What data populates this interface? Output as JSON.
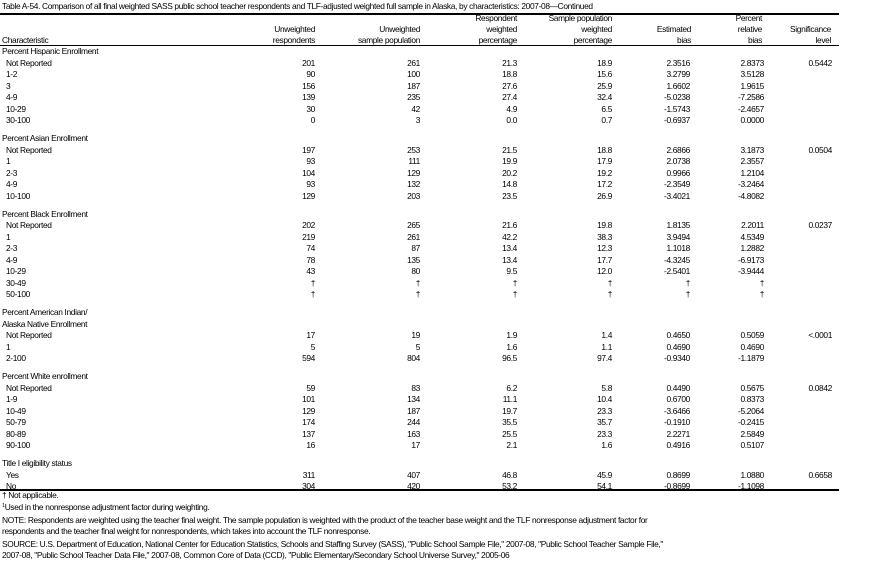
{
  "title": "Table A-54. Comparison of all final weighted SASS public school teacher respondents and TLF-adjusted weighted full sample in Alaska, by characteristics: 2007-08—Continued",
  "headers": {
    "characteristic": "Characteristic",
    "unweighted_respondents": [
      "Unweighted",
      "respondents"
    ],
    "unweighted_sample": [
      "Unweighted",
      "sample population"
    ],
    "respondent_weighted": [
      "Respondent",
      "weighted",
      "percentage"
    ],
    "sample_weighted": [
      "Sample population",
      "weighted",
      "percentage"
    ],
    "estimated_bias": [
      "Estimated",
      "bias"
    ],
    "relative_bias": [
      "Percent",
      "relative",
      "bias"
    ],
    "significance": [
      "Significance",
      "level"
    ]
  },
  "groups": [
    {
      "label": [
        "Percent Hispanic Enrollment"
      ],
      "rows": [
        [
          "Not Reported",
          "201",
          "261",
          "21.3",
          "18.9",
          "2.3516",
          "2.8373",
          "0.5442"
        ],
        [
          "1-2",
          "90",
          "100",
          "18.8",
          "15.6",
          "3.2799",
          "3.5128",
          ""
        ],
        [
          "3",
          "156",
          "187",
          "27.6",
          "25.9",
          "1.6602",
          "1.9615",
          ""
        ],
        [
          "4-9",
          "139",
          "235",
          "27.4",
          "32.4",
          "-5.0238",
          "-7.2586",
          ""
        ],
        [
          "10-29",
          "30",
          "42",
          "4.9",
          "6.5",
          "-1.5743",
          "-2.4657",
          ""
        ],
        [
          "30-100",
          "0",
          "3",
          "0.0",
          "0.7",
          "-0.6937",
          "0.0000",
          ""
        ]
      ]
    },
    {
      "label": [
        "Percent Asian Enrollment"
      ],
      "rows": [
        [
          "Not Reported",
          "197",
          "253",
          "21.5",
          "18.8",
          "2.6866",
          "3.1873",
          "0.0504"
        ],
        [
          "1",
          "93",
          "111",
          "19.9",
          "17.9",
          "2.0738",
          "2.3557",
          ""
        ],
        [
          "2-3",
          "104",
          "129",
          "20.2",
          "19.2",
          "0.9966",
          "1.2104",
          ""
        ],
        [
          "4-9",
          "93",
          "132",
          "14.8",
          "17.2",
          "-2.3549",
          "-3.2464",
          ""
        ],
        [
          "10-100",
          "129",
          "203",
          "23.5",
          "26.9",
          "-3.4021",
          "-4.8082",
          ""
        ]
      ]
    },
    {
      "label": [
        "Percent Black Enrollment"
      ],
      "rows": [
        [
          "Not Reported",
          "202",
          "265",
          "21.6",
          "19.8",
          "1.8135",
          "2.2011",
          "0.0237"
        ],
        [
          "1",
          "219",
          "261",
          "42.2",
          "38.3",
          "3.9494",
          "4.5349",
          ""
        ],
        [
          "2-3",
          "74",
          "87",
          "13.4",
          "12.3",
          "1.1018",
          "1.2882",
          ""
        ],
        [
          "4-9",
          "78",
          "135",
          "13.4",
          "17.7",
          "-4.3245",
          "-6.9173",
          ""
        ],
        [
          "10-29",
          "43",
          "80",
          "9.5",
          "12.0",
          "-2.5401",
          "-3.9444",
          ""
        ],
        [
          "30-49",
          "†",
          "†",
          "†",
          "†",
          "†",
          "†",
          ""
        ],
        [
          "50-100",
          "†",
          "†",
          "†",
          "†",
          "†",
          "†",
          ""
        ]
      ]
    },
    {
      "label": [
        "Percent American Indian/",
        "Alaska Native Enrollment"
      ],
      "rows": [
        [
          "Not Reported",
          "17",
          "19",
          "1.9",
          "1.4",
          "0.4650",
          "0.5059",
          "<.0001"
        ],
        [
          "1",
          "5",
          "5",
          "1.6",
          "1.1",
          "0.4690",
          "0.4690",
          ""
        ],
        [
          "2-100",
          "594",
          "804",
          "96.5",
          "97.4",
          "-0.9340",
          "-1.1879",
          ""
        ]
      ]
    },
    {
      "label": [
        "Percent White enrollment"
      ],
      "rows": [
        [
          "Not Reported",
          "59",
          "83",
          "6.2",
          "5.8",
          "0.4490",
          "0.5675",
          "0.0842"
        ],
        [
          "1-9",
          "101",
          "134",
          "11.1",
          "10.4",
          "0.6700",
          "0.8373",
          ""
        ],
        [
          "10-49",
          "129",
          "187",
          "19.7",
          "23.3",
          "-3.6466",
          "-5.2064",
          ""
        ],
        [
          "50-79",
          "174",
          "244",
          "35.5",
          "35.7",
          "-0.1910",
          "-0.2415",
          ""
        ],
        [
          "80-89",
          "137",
          "163",
          "25.5",
          "23.3",
          "2.2271",
          "2.5849",
          ""
        ],
        [
          "90-100",
          "16",
          "17",
          "2.1",
          "1.6",
          "0.4916",
          "0.5107",
          ""
        ]
      ]
    },
    {
      "label": [
        "Title I eligibility status"
      ],
      "rows": [
        [
          "Yes",
          "311",
          "407",
          "46.8",
          "45.9",
          "0.8699",
          "1.0880",
          "0.6658"
        ],
        [
          "No",
          "304",
          "420",
          "53.2",
          "54.1",
          "-0.8699",
          "-1.1098",
          ""
        ]
      ]
    }
  ],
  "footnotes": {
    "dagger": "† Not applicable.",
    "one_mark": "1",
    "one": "Used in the nonresponse adjustment factor during weighting.",
    "note_1": "NOTE: Respondents are weighted using the teacher final weight. The sample population is weighted with the product of the teacher base weight and the TLF nonresponse adjustment factor for",
    "note_2": "respondents and the teacher final weight for nonrespondents, which takes into account the TLF nonresponse.",
    "source_1": "SOURCE: U.S. Department of Education, National Center for Education Statistics, Schools and Staffing Survey (SASS), \"Public School Sample File,\" 2007-08, \"Public School Teacher Sample File,\"",
    "source_2": "2007-08, \"Public School Teacher Data File,\" 2007-08, Common Core of Data (CCD), \"Public Elementary/Secondary School Universe Survey,\" 2005-06"
  }
}
